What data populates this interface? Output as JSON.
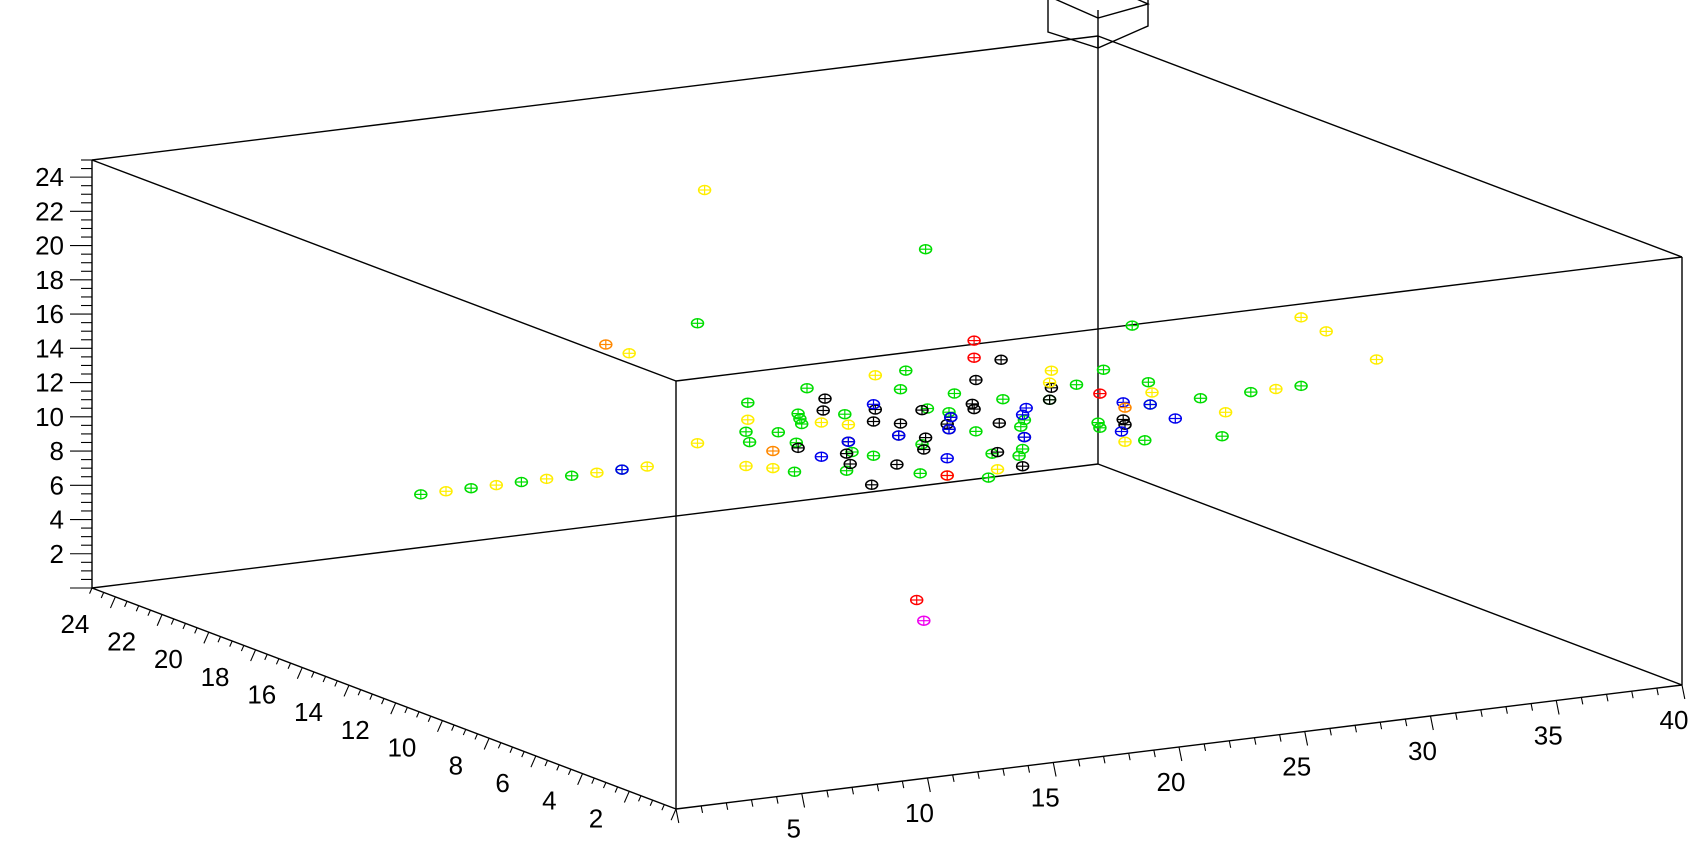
{
  "chart_data": {
    "type": "scatter",
    "title": "",
    "xlabel": "",
    "ylabel": "",
    "zlabel": "",
    "xlim": [
      0,
      40
    ],
    "ylim": [
      0,
      25
    ],
    "zlim": [
      0,
      25
    ],
    "grid": false,
    "x_ticks": [
      5,
      10,
      15,
      20,
      25,
      30,
      35,
      40
    ],
    "y_ticks": [
      2,
      4,
      6,
      8,
      10,
      12,
      14,
      16,
      18,
      20,
      22,
      24
    ],
    "z_ticks": [
      2,
      4,
      6,
      8,
      10,
      12,
      14,
      16,
      18,
      20,
      22,
      24
    ],
    "series": [
      {
        "color": "#00dd00",
        "points": [
          [
            1,
            12,
            12
          ],
          [
            3,
            12,
            12
          ],
          [
            5,
            12,
            12
          ],
          [
            7,
            12,
            12
          ],
          [
            9,
            12,
            12
          ],
          [
            14,
            10,
            12
          ],
          [
            15,
            11,
            13
          ],
          [
            16,
            12,
            14
          ],
          [
            17,
            13,
            13
          ],
          [
            18,
            14,
            12
          ],
          [
            19,
            12,
            11
          ],
          [
            20,
            11,
            12
          ],
          [
            21,
            13,
            14
          ],
          [
            22,
            12,
            13
          ],
          [
            23,
            14,
            12
          ],
          [
            24,
            13,
            11
          ],
          [
            25,
            12,
            12
          ],
          [
            26,
            12,
            13
          ],
          [
            27,
            11,
            12
          ],
          [
            28,
            12,
            11
          ],
          [
            30,
            12,
            12
          ],
          [
            32,
            12,
            12
          ],
          [
            34,
            12,
            12
          ],
          [
            36,
            12,
            12
          ],
          [
            12,
            12,
            20
          ],
          [
            22,
            13,
            22
          ],
          [
            33,
            16,
            14
          ],
          [
            18,
            6,
            13
          ],
          [
            21,
            17,
            12
          ],
          [
            19,
            10,
            11
          ],
          [
            17,
            11,
            11
          ],
          [
            23,
            10,
            13
          ],
          [
            15,
            13,
            12
          ],
          [
            26,
            14,
            12
          ],
          [
            28,
            13,
            13
          ],
          [
            20,
            14,
            10
          ],
          [
            24,
            11,
            11
          ],
          [
            16,
            10,
            15
          ],
          [
            29,
            11,
            14
          ],
          [
            31,
            10,
            11
          ],
          [
            13,
            11,
            14
          ],
          [
            25,
            15,
            12
          ],
          [
            27,
            9,
            12
          ],
          [
            18,
            15,
            11
          ],
          [
            22,
            9,
            12
          ],
          [
            20,
            8,
            13
          ],
          [
            24,
            16,
            13
          ],
          [
            30,
            14,
            13
          ],
          [
            14,
            12,
            15
          ]
        ]
      },
      {
        "color": "#000000",
        "points": [
          [
            17,
            11,
            12
          ],
          [
            18,
            12,
            12
          ],
          [
            19,
            12,
            13
          ],
          [
            20,
            12,
            12
          ],
          [
            21,
            12,
            11
          ],
          [
            22,
            12,
            12
          ],
          [
            23,
            12,
            13
          ],
          [
            24,
            12,
            12
          ],
          [
            19,
            11,
            11
          ],
          [
            20,
            13,
            13
          ],
          [
            21,
            11,
            13
          ],
          [
            22,
            13,
            11
          ],
          [
            18,
            13,
            14
          ],
          [
            23,
            11,
            11
          ],
          [
            24,
            13,
            14
          ],
          [
            25,
            12,
            11
          ],
          [
            26,
            12,
            13
          ],
          [
            20,
            11,
            14
          ],
          [
            21,
            13,
            12
          ],
          [
            19,
            13,
            10
          ],
          [
            22,
            11,
            14
          ],
          [
            23,
            13,
            12
          ],
          [
            27,
            13,
            13
          ],
          [
            28,
            11,
            12
          ],
          [
            24,
            11,
            10
          ],
          [
            17,
            12,
            14
          ],
          [
            18,
            11,
            10
          ],
          [
            25,
            13,
            15
          ],
          [
            29,
            12,
            11
          ],
          [
            16,
            12,
            12
          ]
        ]
      },
      {
        "color": "#0000ee",
        "points": [
          [
            9,
            12,
            12
          ],
          [
            16,
            11,
            12
          ],
          [
            18,
            12,
            12
          ],
          [
            20,
            12,
            12
          ],
          [
            22,
            12,
            12
          ],
          [
            24,
            11,
            13
          ],
          [
            19,
            12,
            14
          ],
          [
            21,
            11,
            11
          ],
          [
            23,
            13,
            12
          ],
          [
            25,
            12,
            11
          ],
          [
            26,
            13,
            12
          ],
          [
            27,
            10,
            12
          ],
          [
            28,
            11,
            13
          ],
          [
            30,
            12,
            12
          ],
          [
            31,
            12,
            11
          ]
        ]
      },
      {
        "color": "#ffee00",
        "points": [
          [
            2,
            12,
            12
          ],
          [
            4,
            12,
            12
          ],
          [
            6,
            12,
            12
          ],
          [
            8,
            12,
            12
          ],
          [
            10,
            12,
            12
          ],
          [
            12,
            12,
            13
          ],
          [
            13,
            11,
            12
          ],
          [
            14,
            12,
            14
          ],
          [
            15,
            12,
            11
          ],
          [
            16,
            11,
            14
          ],
          [
            18,
            12,
            13
          ],
          [
            20,
            13,
            15
          ],
          [
            23,
            11,
            10
          ],
          [
            26,
            12,
            14
          ],
          [
            29,
            12,
            10
          ],
          [
            31,
            13,
            12
          ],
          [
            33,
            12,
            11
          ],
          [
            35,
            12,
            12
          ],
          [
            39,
            12,
            13
          ],
          [
            37,
            12,
            15
          ],
          [
            36,
            12,
            16
          ],
          [
            13,
            16,
            16
          ],
          [
            16,
            16,
            25
          ],
          [
            21,
            11,
            10
          ],
          [
            27,
            13,
            14
          ]
        ]
      },
      {
        "color": "#ff0000",
        "points": [
          [
            23,
            12,
            17
          ],
          [
            23,
            12,
            16
          ],
          [
            21,
            11,
            10
          ],
          [
            28,
            12,
            13
          ],
          [
            17,
            8,
            5
          ]
        ]
      },
      {
        "color": "#ff8800",
        "points": [
          [
            13,
            17,
            16
          ],
          [
            15,
            12,
            12
          ],
          [
            29,
            12,
            12
          ]
        ]
      },
      {
        "color": "#ee00ee",
        "points": [
          [
            21,
            12,
            1
          ]
        ]
      }
    ]
  }
}
